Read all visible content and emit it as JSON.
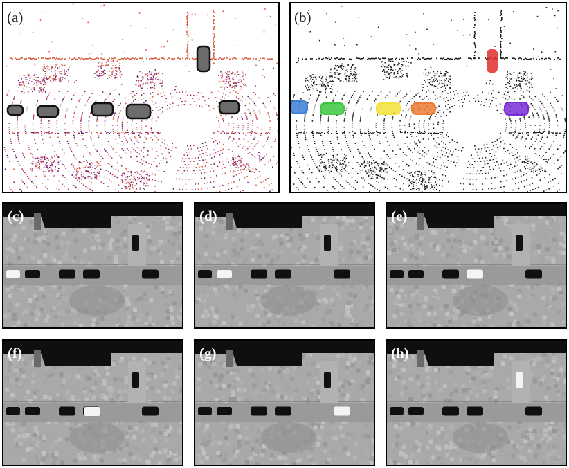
{
  "figure": {
    "top_panels": [
      {
        "id": "a",
        "label": "(a)"
      },
      {
        "id": "b",
        "label": "(b)"
      }
    ],
    "map_panels": [
      {
        "id": "c",
        "label": "(c)",
        "highlighted": "car-1"
      },
      {
        "id": "d",
        "label": "(d)",
        "highlighted": "car-2"
      },
      {
        "id": "e",
        "label": "(e)",
        "highlighted": "car-4"
      },
      {
        "id": "f",
        "label": "(f)",
        "highlighted": "car-5"
      },
      {
        "id": "g",
        "label": "(g)",
        "highlighted": "car-6"
      },
      {
        "id": "h",
        "label": "(h)",
        "highlighted": "car-vertical"
      }
    ],
    "object_colors": {
      "blue": "#3b7fd9",
      "green": "#3ec73e",
      "yellow": "#f2e23a",
      "orange": "#ef7a35",
      "purple": "#7a2fd6",
      "red": "#e02d2d"
    },
    "point_cloud_colors": [
      "#8b1f78",
      "#b83a63",
      "#d95a3c",
      "#5a1a6b",
      "#c9463f"
    ],
    "detection_fill": "#6c6c6c"
  }
}
